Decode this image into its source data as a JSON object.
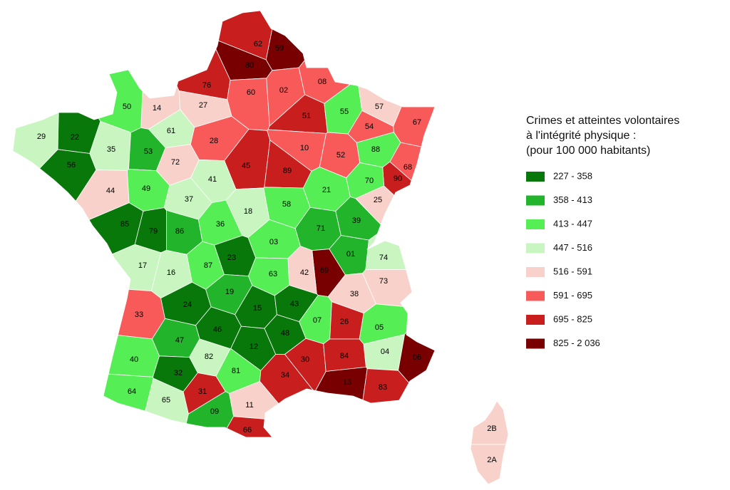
{
  "legend": {
    "title": [
      "Crimes et atteintes volontaires",
      "à l'intégrité physique :",
      "(pour 100 000 habitants)"
    ],
    "items": [
      {
        "label": "227 - 358",
        "color": "#08780a"
      },
      {
        "label": "358 - 413",
        "color": "#22b52c"
      },
      {
        "label": "413 - 447",
        "color": "#55ee55"
      },
      {
        "label": "447 - 516",
        "color": "#c8f5c0"
      },
      {
        "label": "516 - 591",
        "color": "#f8d2ca"
      },
      {
        "label": "591 - 695",
        "color": "#f85a5a"
      },
      {
        "label": "695 - 825",
        "color": "#c81e1e"
      },
      {
        "label": "825 - 2 036",
        "color": "#780000"
      }
    ]
  },
  "departments": [
    {
      "code": "62",
      "class": 6
    },
    {
      "code": "59",
      "class": 7
    },
    {
      "code": "80",
      "class": 7
    },
    {
      "code": "76",
      "class": 6
    },
    {
      "code": "60",
      "class": 5
    },
    {
      "code": "02",
      "class": 5
    },
    {
      "code": "08",
      "class": 5
    },
    {
      "code": "14",
      "class": 4
    },
    {
      "code": "27",
      "class": 4
    },
    {
      "code": "50",
      "class": 2
    },
    {
      "code": "51",
      "class": 6
    },
    {
      "code": "55",
      "class": 2
    },
    {
      "code": "57",
      "class": 4
    },
    {
      "code": "67",
      "class": 5
    },
    {
      "code": "54",
      "class": 5
    },
    {
      "code": "29",
      "class": 3
    },
    {
      "code": "22",
      "class": 0
    },
    {
      "code": "35",
      "class": 3
    },
    {
      "code": "61",
      "class": 3
    },
    {
      "code": "53",
      "class": 1
    },
    {
      "code": "72",
      "class": 4
    },
    {
      "code": "28",
      "class": 5
    },
    {
      "code": "45",
      "class": 6
    },
    {
      "code": "10",
      "class": 5
    },
    {
      "code": "52",
      "class": 5
    },
    {
      "code": "88",
      "class": 2
    },
    {
      "code": "68",
      "class": 5
    },
    {
      "code": "90",
      "class": 6
    },
    {
      "code": "56",
      "class": 0
    },
    {
      "code": "44",
      "class": 4
    },
    {
      "code": "49",
      "class": 2
    },
    {
      "code": "37",
      "class": 3
    },
    {
      "code": "41",
      "class": 3
    },
    {
      "code": "18",
      "class": 3
    },
    {
      "code": "89",
      "class": 6
    },
    {
      "code": "21",
      "class": 2
    },
    {
      "code": "70",
      "class": 2
    },
    {
      "code": "25",
      "class": 4
    },
    {
      "code": "58",
      "class": 2
    },
    {
      "code": "85",
      "class": 0
    },
    {
      "code": "79",
      "class": 0
    },
    {
      "code": "86",
      "class": 1
    },
    {
      "code": "36",
      "class": 2
    },
    {
      "code": "71",
      "class": 1
    },
    {
      "code": "39",
      "class": 1
    },
    {
      "code": "03",
      "class": 2
    },
    {
      "code": "01",
      "class": 1
    },
    {
      "code": "74",
      "class": 3
    },
    {
      "code": "69",
      "class": 7
    },
    {
      "code": "42",
      "class": 4
    },
    {
      "code": "17",
      "class": 3
    },
    {
      "code": "16",
      "class": 3
    },
    {
      "code": "87",
      "class": 2
    },
    {
      "code": "23",
      "class": 0
    },
    {
      "code": "63",
      "class": 2
    },
    {
      "code": "38",
      "class": 4
    },
    {
      "code": "73",
      "class": 4
    },
    {
      "code": "33",
      "class": 5
    },
    {
      "code": "24",
      "class": 0
    },
    {
      "code": "19",
      "class": 1
    },
    {
      "code": "15",
      "class": 0
    },
    {
      "code": "43",
      "class": 0
    },
    {
      "code": "07",
      "class": 2
    },
    {
      "code": "26",
      "class": 6
    },
    {
      "code": "05",
      "class": 2
    },
    {
      "code": "04",
      "class": 3
    },
    {
      "code": "06",
      "class": 7
    },
    {
      "code": "46",
      "class": 0
    },
    {
      "code": "48",
      "class": 0
    },
    {
      "code": "47",
      "class": 1
    },
    {
      "code": "12",
      "class": 0
    },
    {
      "code": "30",
      "class": 6
    },
    {
      "code": "84",
      "class": 6
    },
    {
      "code": "40",
      "class": 2
    },
    {
      "code": "82",
      "class": 3
    },
    {
      "code": "81",
      "class": 2
    },
    {
      "code": "34",
      "class": 6
    },
    {
      "code": "13",
      "class": 7
    },
    {
      "code": "83",
      "class": 6
    },
    {
      "code": "32",
      "class": 0
    },
    {
      "code": "64",
      "class": 2
    },
    {
      "code": "65",
      "class": 3
    },
    {
      "code": "31",
      "class": 6
    },
    {
      "code": "11",
      "class": 4
    },
    {
      "code": "09",
      "class": 1
    },
    {
      "code": "66",
      "class": 6
    },
    {
      "code": "2B",
      "class": 4
    },
    {
      "code": "2A",
      "class": 4
    }
  ]
}
